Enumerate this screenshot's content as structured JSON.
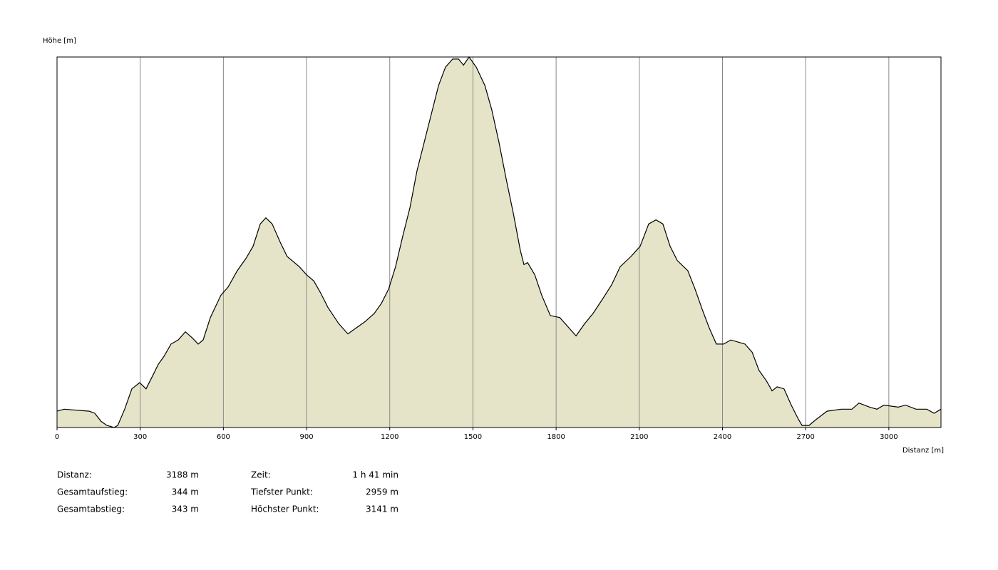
{
  "chart_data": {
    "type": "area",
    "y_label": "Höhe [m]",
    "x_label": "Distanz [m]",
    "x": [
      0,
      26,
      116,
      136,
      159,
      180,
      206,
      219,
      244,
      270,
      298,
      321,
      347,
      365,
      386,
      411,
      437,
      463,
      488,
      509,
      527,
      553,
      591,
      617,
      650,
      681,
      707,
      733,
      753,
      776,
      805,
      830,
      874,
      900,
      926,
      951,
      977,
      1016,
      1049,
      1080,
      1111,
      1144,
      1170,
      1196,
      1221,
      1247,
      1273,
      1298,
      1324,
      1350,
      1376,
      1401,
      1427,
      1448,
      1466,
      1486,
      1512,
      1543,
      1568,
      1594,
      1620,
      1646,
      1671,
      1684,
      1697,
      1723,
      1748,
      1779,
      1813,
      1846,
      1872,
      1903,
      1933,
      1967,
      2000,
      2031,
      2070,
      2103,
      2134,
      2160,
      2185,
      2211,
      2237,
      2275,
      2301,
      2327,
      2352,
      2378,
      2404,
      2430,
      2481,
      2507,
      2532,
      2558,
      2579,
      2597,
      2622,
      2648,
      2674,
      2687,
      2712,
      2738,
      2777,
      2828,
      2867,
      2892,
      2931,
      2957,
      2982,
      3034,
      3060,
      3098,
      3137,
      3163,
      3188
    ],
    "values": [
      2967,
      2968,
      2967,
      2966,
      2962,
      2960,
      2959,
      2960,
      2968,
      2978,
      2981,
      2978,
      2985,
      2990,
      2994,
      3000,
      3002,
      3006,
      3003,
      3000,
      3002,
      3013,
      3024,
      3028,
      3036,
      3042,
      3048,
      3059,
      3062,
      3059,
      3050,
      3043,
      3038,
      3034,
      3031,
      3025,
      3018,
      3010,
      3005,
      3008,
      3011,
      3015,
      3020,
      3027,
      3038,
      3053,
      3067,
      3085,
      3099,
      3113,
      3127,
      3136,
      3140,
      3140,
      3137,
      3141,
      3136,
      3127,
      3115,
      3099,
      3081,
      3064,
      3046,
      3039,
      3040,
      3034,
      3024,
      3014,
      3013,
      3008,
      3004,
      3010,
      3015,
      3022,
      3029,
      3038,
      3043,
      3048,
      3059,
      3061,
      3059,
      3048,
      3041,
      3036,
      3027,
      3017,
      3008,
      3000,
      3000,
      3002,
      3000,
      2996,
      2987,
      2982,
      2977,
      2979,
      2978,
      2970,
      2963,
      2960,
      2960,
      2963,
      2967,
      2968,
      2968,
      2971,
      2969,
      2968,
      2970,
      2969,
      2970,
      2968,
      2968,
      2966,
      2968
    ],
    "color": "#e6e4c8",
    "line_color": "#000000",
    "xlim": [
      0,
      3188
    ],
    "ylim": [
      2959,
      3141
    ],
    "xticks": [
      0,
      300,
      600,
      900,
      1200,
      1500,
      1800,
      2100,
      2400,
      2700,
      3000
    ],
    "grid": true
  },
  "summary": {
    "rows": [
      [
        {
          "label": "Distanz:",
          "value": "3188 m"
        },
        {
          "label": "Zeit:",
          "value": "1 h 41 min"
        }
      ],
      [
        {
          "label": "Gesamtaufstieg:",
          "value": "344 m"
        },
        {
          "label": "Tiefster Punkt:",
          "value": "2959 m"
        }
      ],
      [
        {
          "label": "Gesamtabstieg:",
          "value": "343 m"
        },
        {
          "label": "Höchster Punkt:",
          "value": "3141 m"
        }
      ]
    ]
  }
}
